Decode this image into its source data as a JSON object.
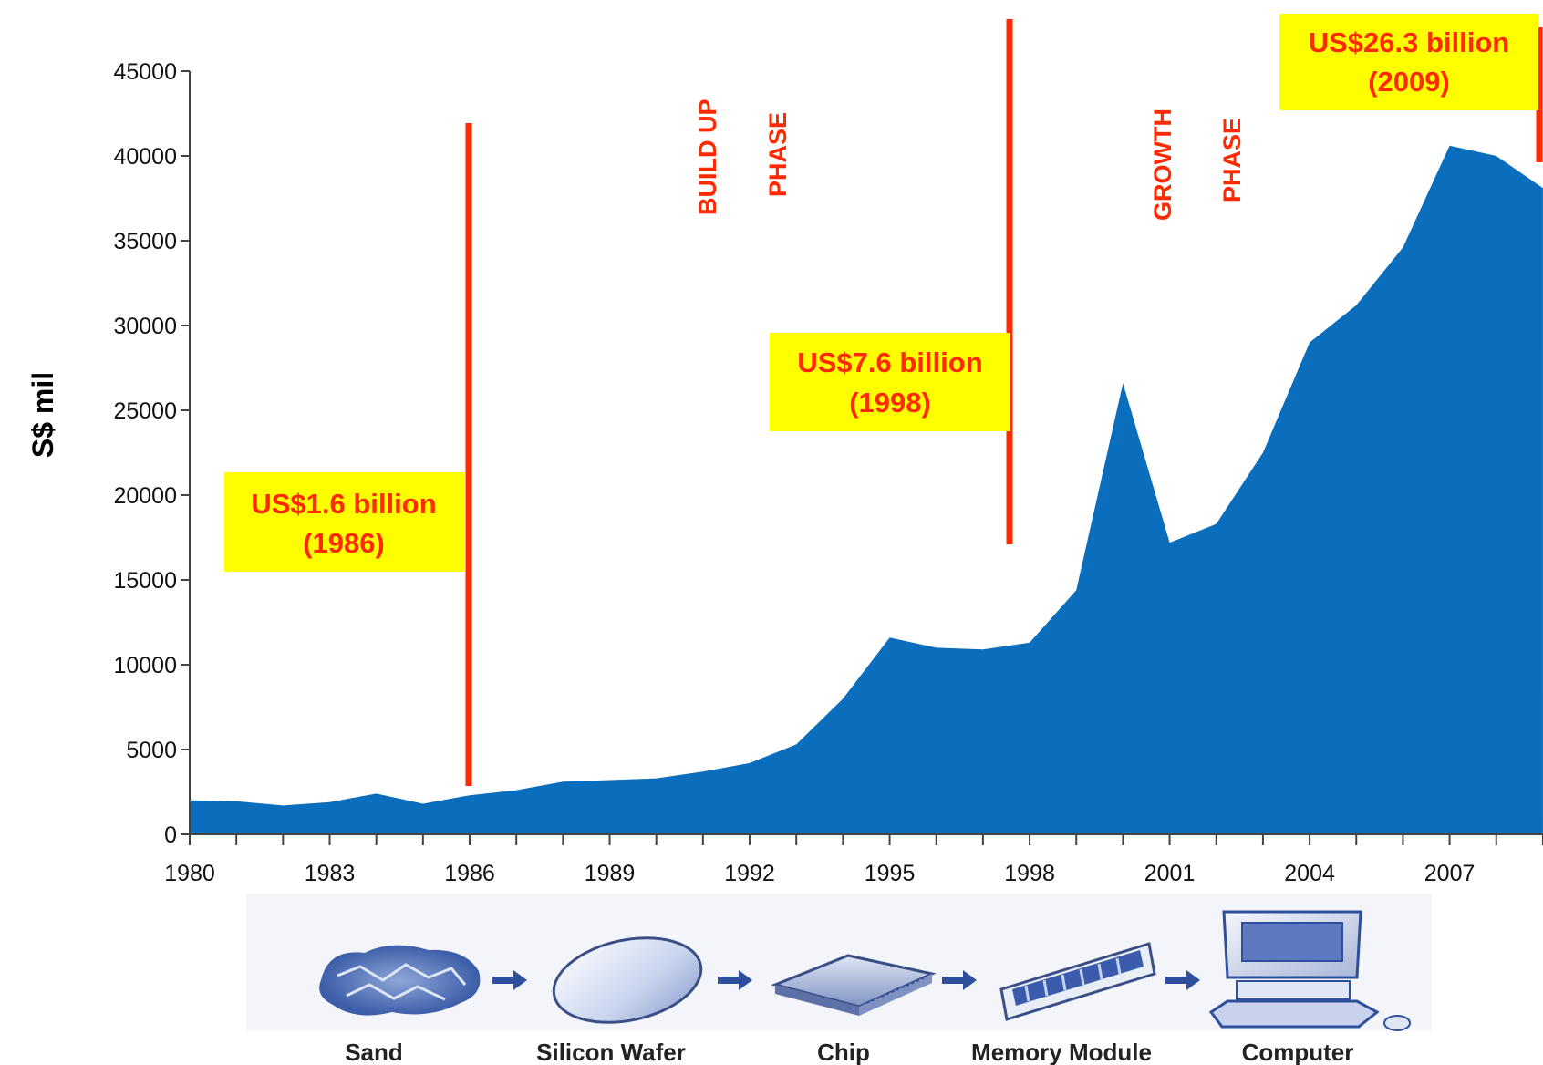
{
  "chart_data": {
    "type": "area",
    "ylabel": "S$ mil",
    "xlabel": "",
    "ylim": [
      0,
      45000
    ],
    "xlim": [
      1980,
      2009
    ],
    "yticks": [
      0,
      5000,
      10000,
      15000,
      20000,
      25000,
      30000,
      35000,
      40000,
      45000
    ],
    "xtick_labels": [
      "1980",
      "1983",
      "1986",
      "1989",
      "1992",
      "1995",
      "1998",
      "2001",
      "2004",
      "2007"
    ],
    "grid": false,
    "series": [
      {
        "x": [
          1980,
          1981,
          1982,
          1983,
          1984,
          1985,
          1986,
          1987,
          1988,
          1989,
          1990,
          1991,
          1992,
          1993,
          1994,
          1995,
          1996,
          1997,
          1998,
          1999,
          2000,
          2001,
          2002,
          2003,
          2004,
          2005,
          2006,
          2007,
          2008,
          2009
        ],
        "values": [
          2000,
          1950,
          1700,
          1900,
          2400,
          1800,
          2300,
          2600,
          3100,
          3200,
          3300,
          3700,
          4200,
          5300,
          8000,
          11600,
          11000,
          10900,
          11300,
          14400,
          26600,
          17200,
          18300,
          22500,
          29000,
          31200,
          34600,
          40600,
          40000,
          38100
        ],
        "color": "#0a6ebd"
      }
    ],
    "annotations": [
      {
        "id": "a1986",
        "line1": "US$1.6 billion",
        "line2": "(1986)"
      },
      {
        "id": "a1998",
        "line1": "US$7.6 billion",
        "line2": "(1998)"
      },
      {
        "id": "a2009",
        "line1": "US$26.3 billion",
        "line2": "(2009)"
      }
    ],
    "phases": [
      {
        "id": "build",
        "word1": "BUILD UP",
        "word2": "PHASE"
      },
      {
        "id": "growth",
        "word1": "GROWTH",
        "word2": "PHASE"
      }
    ],
    "colors": {
      "area": "#0a6ebd",
      "marker": "#ff2a00",
      "callout_bg": "#ffff00",
      "callout_text": "#ff2a00"
    }
  },
  "value_chain": {
    "items": [
      {
        "label": "Sand",
        "icon": "sand-icon"
      },
      {
        "label": "Silicon Wafer",
        "icon": "silicon-wafer-icon"
      },
      {
        "label": "Chip",
        "icon": "chip-icon"
      },
      {
        "label": "Memory Module",
        "icon": "memory-module-icon"
      },
      {
        "label": "Computer",
        "icon": "computer-icon"
      }
    ]
  }
}
